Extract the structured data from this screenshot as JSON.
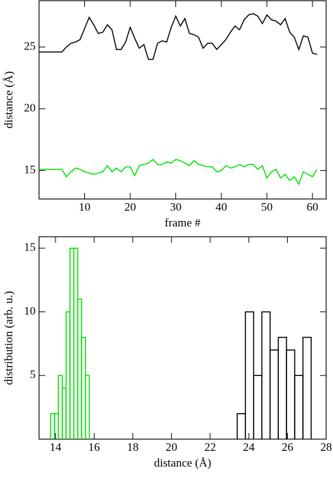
{
  "chart_data": [
    {
      "type": "line",
      "xlabel": "frame #",
      "ylabel": "distance (Å)",
      "x": [
        0,
        1,
        2,
        3,
        4,
        5,
        6,
        7,
        8,
        9,
        10,
        11,
        12,
        13,
        14,
        15,
        16,
        17,
        18,
        19,
        20,
        21,
        22,
        23,
        24,
        25,
        26,
        27,
        28,
        29,
        30,
        31,
        32,
        33,
        34,
        35,
        36,
        37,
        38,
        39,
        40,
        41,
        42,
        43,
        44,
        45,
        46,
        47,
        48,
        49,
        50,
        51,
        52,
        53,
        54,
        55,
        56,
        57,
        58,
        59,
        60,
        61
      ],
      "series": [
        {
          "color": "#000000",
          "values": [
            24.6,
            24.6,
            24.6,
            24.6,
            24.6,
            24.6,
            25.0,
            25.3,
            25.4,
            25.6,
            26.5,
            27.4,
            26.8,
            26.1,
            26.2,
            26.8,
            26.4,
            24.8,
            24.8,
            25.4,
            26.6,
            25.7,
            24.9,
            25.2,
            24.0,
            24.0,
            25.3,
            25.5,
            25.4,
            26.6,
            27.5,
            26.7,
            27.3,
            26.1,
            26.0,
            25.8,
            24.9,
            25.3,
            25.3,
            24.8,
            25.2,
            25.6,
            26.2,
            26.7,
            26.4,
            27.2,
            27.6,
            27.7,
            27.5,
            26.9,
            27.6,
            27.2,
            27.1,
            26.8,
            27.3,
            26.2,
            25.8,
            24.8,
            25.9,
            25.8,
            24.5,
            24.4
          ]
        },
        {
          "color": "#00e000",
          "values": [
            15.1,
            15.1,
            15.1,
            15.1,
            15.1,
            15.1,
            14.5,
            14.9,
            15.2,
            15.1,
            14.9,
            14.8,
            14.7,
            14.8,
            14.9,
            15.4,
            14.9,
            15.2,
            14.9,
            15.3,
            15.3,
            14.6,
            15.4,
            15.5,
            15.6,
            15.9,
            15.5,
            15.5,
            15.7,
            15.6,
            15.9,
            15.8,
            15.6,
            15.4,
            15.8,
            15.5,
            15.4,
            15.3,
            15.3,
            14.9,
            15.0,
            15.4,
            15.2,
            15.3,
            15.5,
            15.3,
            15.5,
            15.5,
            15.1,
            15.4,
            14.4,
            14.9,
            15.1,
            14.4,
            14.7,
            14.2,
            14.5,
            13.9,
            14.9,
            14.7,
            14.5,
            15.1
          ]
        }
      ],
      "xlim": [
        0,
        63
      ],
      "ylim": [
        12.7,
        28.75
      ],
      "xticks": [
        10,
        20,
        30,
        40,
        50,
        60
      ],
      "yticks": [
        15,
        20,
        25
      ]
    },
    {
      "type": "histogram",
      "xlabel": "distance (Å)",
      "ylabel": "distribution (arb. u.)",
      "series": [
        {
          "color": "#00e000",
          "bins": [
            13.75,
            13.95,
            14.15,
            14.35,
            14.55,
            14.75,
            14.95,
            15.15,
            15.35,
            15.55,
            15.75
          ],
          "values": [
            2,
            2,
            5,
            4,
            10,
            15,
            15,
            11,
            8,
            5
          ]
        },
        {
          "color": "#000000",
          "bins": [
            23.4,
            23.825,
            24.25,
            24.675,
            25.1,
            25.525,
            25.95,
            26.375,
            26.8,
            27.225
          ],
          "values": [
            2,
            10,
            5,
            10,
            7,
            8,
            7,
            5,
            8
          ]
        }
      ],
      "xlim": [
        13.15,
        28
      ],
      "ylim": [
        0,
        15.9
      ],
      "xticks": [
        14,
        16,
        18,
        20,
        22,
        24,
        26,
        28
      ],
      "yticks": [
        5,
        10,
        15
      ]
    }
  ]
}
